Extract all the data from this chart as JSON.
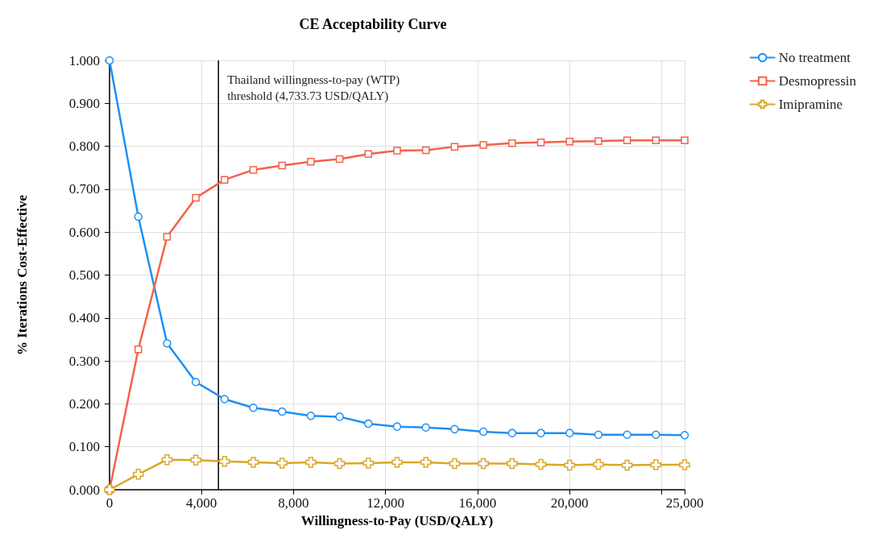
{
  "chart_data": {
    "type": "line",
    "title": "CE Acceptability Curve",
    "xlabel": "Willingness-to-Pay (USD/QALY)",
    "ylabel": "% Iterations Cost-Effective",
    "x": [
      0,
      1250,
      2500,
      3750,
      5000,
      6250,
      7500,
      8750,
      10000,
      11250,
      12500,
      13750,
      15000,
      16250,
      17500,
      18750,
      20000,
      21250,
      22500,
      23750,
      25000
    ],
    "series": [
      {
        "name": "No treatment",
        "color": "#1e90f5",
        "marker": "circle",
        "values": [
          1.0,
          0.636,
          0.341,
          0.251,
          0.211,
          0.191,
          0.182,
          0.172,
          0.17,
          0.154,
          0.147,
          0.145,
          0.141,
          0.135,
          0.132,
          0.132,
          0.132,
          0.128,
          0.128,
          0.128,
          0.127
        ]
      },
      {
        "name": "Desmopressin",
        "color": "#f4614a",
        "marker": "square",
        "values": [
          0,
          0.327,
          0.589,
          0.68,
          0.722,
          0.745,
          0.755,
          0.764,
          0.77,
          0.782,
          0.79,
          0.791,
          0.799,
          0.803,
          0.807,
          0.809,
          0.811,
          0.812,
          0.814,
          0.814,
          0.814
        ]
      },
      {
        "name": "Imipramine",
        "color": "#dba628",
        "marker": "cross",
        "values": [
          0,
          0.036,
          0.07,
          0.069,
          0.066,
          0.064,
          0.062,
          0.064,
          0.061,
          0.062,
          0.064,
          0.064,
          0.061,
          0.061,
          0.061,
          0.059,
          0.057,
          0.059,
          0.057,
          0.058,
          0.058
        ]
      }
    ],
    "xlim": [
      0,
      25000
    ],
    "xticks": [
      0,
      {
        "value": 4000,
        "label": "4,000"
      },
      {
        "value": 8000,
        "label": "8,000"
      },
      {
        "value": 12000,
        "label": "12,000"
      },
      {
        "value": 16000,
        "label": "16,000"
      },
      {
        "value": 20000,
        "label": "20,000"
      },
      {
        "value": 24000,
        "label": null
      },
      {
        "value": 25000,
        "label": "25,000"
      }
    ],
    "ylim": [
      0,
      1
    ],
    "yticks": [
      {
        "value": 0,
        "label": "0.000"
      },
      {
        "value": 0.1,
        "label": "0.100"
      },
      {
        "value": 0.2,
        "label": "0.200"
      },
      {
        "value": 0.3,
        "label": "0.300"
      },
      {
        "value": 0.4,
        "label": "0.400"
      },
      {
        "value": 0.5,
        "label": "0.500"
      },
      {
        "value": 0.6,
        "label": "0.600"
      },
      {
        "value": 0.7,
        "label": "0.700"
      },
      {
        "value": 0.8,
        "label": "0.800"
      },
      {
        "value": 0.9,
        "label": "0.900"
      },
      {
        "value": 1,
        "label": "1.000"
      }
    ],
    "ref_lines": [
      {
        "axis": "x",
        "value": 4733.73,
        "label": "Thailand willingness-to-pay (WTP)\nthreshold (4,733.73 USD/QALY)",
        "color": "#000000"
      }
    ],
    "grid": true,
    "legend": "top right",
    "line_style": "solid"
  }
}
